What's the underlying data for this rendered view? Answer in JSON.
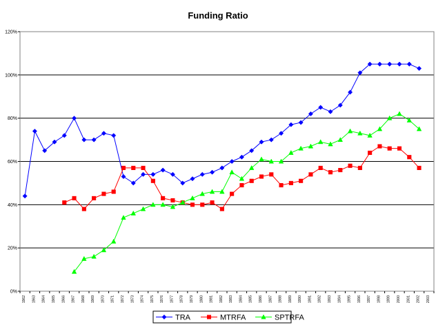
{
  "chart_data": {
    "type": "line",
    "title": "Funding Ratio",
    "xlabel": "",
    "ylabel": "",
    "ylim": [
      0,
      120
    ],
    "y_ticks": [
      "0%",
      "20%",
      "40%",
      "60%",
      "80%",
      "100%",
      "120%"
    ],
    "y_tick_values": [
      0,
      20,
      40,
      60,
      80,
      100,
      120
    ],
    "grid": true,
    "legend_position": "bottom",
    "categories": [
      "1962",
      "1963",
      "1964",
      "1965",
      "1966",
      "1967",
      "1968",
      "1969",
      "1970",
      "1971",
      "1972",
      "1973",
      "1974",
      "1975",
      "1976",
      "1977",
      "1978",
      "1979",
      "1980",
      "1981",
      "1982",
      "1983",
      "1984",
      "1985",
      "1986",
      "1987",
      "1988",
      "1989",
      "1990",
      "1991",
      "1992",
      "1993",
      "1994",
      "1995",
      "1996",
      "1997",
      "1998",
      "1999",
      "2000",
      "2001",
      "2002",
      "2003"
    ],
    "series": [
      {
        "name": "TRA",
        "color": "#0000FF",
        "marker": "diamond",
        "values": [
          44,
          74,
          65,
          69,
          72,
          80,
          70,
          70,
          73,
          72,
          53,
          50,
          54,
          54,
          56,
          54,
          50,
          52,
          54,
          55,
          57,
          60,
          62,
          65,
          69,
          70,
          73,
          77,
          78,
          82,
          85,
          83,
          86,
          92,
          101,
          105,
          105,
          105,
          105,
          105,
          103,
          null
        ]
      },
      {
        "name": "MTRFA",
        "color": "#FF0000",
        "marker": "square",
        "values": [
          null,
          null,
          null,
          null,
          41,
          43,
          38,
          43,
          45,
          46,
          57,
          57,
          57,
          51,
          43,
          42,
          41,
          40,
          40,
          41,
          38,
          45,
          49,
          51,
          53,
          54,
          49,
          50,
          51,
          54,
          57,
          55,
          56,
          58,
          57,
          64,
          67,
          66,
          66,
          62,
          57,
          null
        ]
      },
      {
        "name": "SPTRFA",
        "color": "#00FF00",
        "marker": "triangle",
        "values": [
          null,
          null,
          null,
          null,
          null,
          9,
          15,
          16,
          19,
          23,
          34,
          36,
          38,
          40,
          40,
          39,
          41,
          43,
          45,
          46,
          46,
          55,
          52,
          57,
          61,
          60,
          60,
          64,
          66,
          67,
          69,
          68,
          70,
          74,
          73,
          72,
          75,
          80,
          82,
          79,
          75,
          null
        ]
      }
    ]
  }
}
